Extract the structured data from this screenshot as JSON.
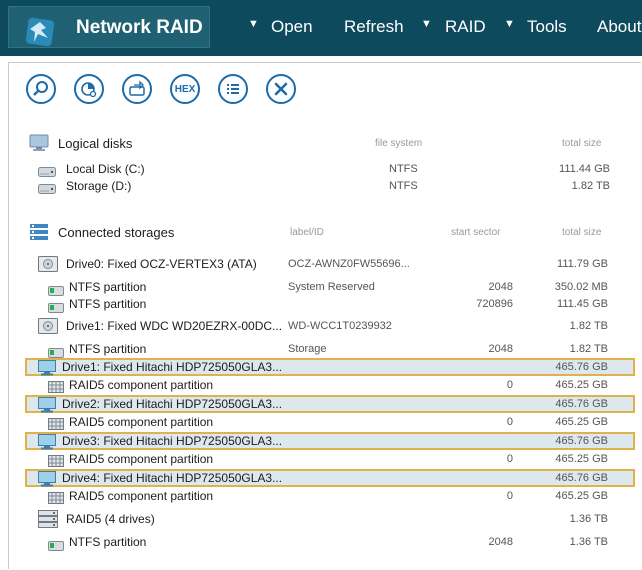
{
  "app": {
    "title": "Network RAID",
    "menu": [
      "Open",
      "Refresh",
      "RAID",
      "Tools",
      "About"
    ],
    "arrow": "▼"
  },
  "toolbar": {
    "hex_label": "HEX"
  },
  "logical": {
    "title": "Logical disks",
    "col_fs": "file system",
    "col_size": "total size",
    "rows": [
      {
        "name": "Local Disk (C:)",
        "fs": "NTFS",
        "size": "111.44 GB"
      },
      {
        "name": "Storage (D:)",
        "fs": "NTFS",
        "size": "1.82 TB"
      }
    ]
  },
  "storages": {
    "title": "Connected storages",
    "col_label": "label/ID",
    "col_start": "start sector",
    "col_size": "total size",
    "rows": [
      {
        "name": "Drive0: Fixed OCZ-VERTEX3 (ATA)",
        "label": "OCZ-AWNZ0FW55696...",
        "start": "",
        "size": "111.79 GB"
      },
      {
        "name": "NTFS partition",
        "label": "System Reserved",
        "start": "2048",
        "size": "350.02 MB"
      },
      {
        "name": "NTFS partition",
        "label": "",
        "start": "720896",
        "size": "111.45 GB"
      },
      {
        "name": "Drive1: Fixed WDC WD20EZRX-00DC...",
        "label": "WD-WCC1T0239932",
        "start": "",
        "size": "1.82 TB"
      },
      {
        "name": "NTFS partition",
        "label": "Storage",
        "start": "2048",
        "size": "1.82 TB"
      },
      {
        "name": "Drive1: Fixed Hitachi HDP725050GLA3...",
        "label": "",
        "start": "",
        "size": "465.76 GB"
      },
      {
        "name": "RAID5 component partition",
        "label": "",
        "start": "0",
        "size": "465.25 GB"
      },
      {
        "name": "Drive2: Fixed Hitachi HDP725050GLA3...",
        "label": "",
        "start": "",
        "size": "465.76 GB"
      },
      {
        "name": "RAID5 component partition",
        "label": "",
        "start": "0",
        "size": "465.25 GB"
      },
      {
        "name": "Drive3: Fixed Hitachi HDP725050GLA3...",
        "label": "",
        "start": "",
        "size": "465.76 GB"
      },
      {
        "name": "RAID5 component partition",
        "label": "",
        "start": "0",
        "size": "465.25 GB"
      },
      {
        "name": "Drive4: Fixed Hitachi HDP725050GLA3...",
        "label": "",
        "start": "",
        "size": "465.76 GB"
      },
      {
        "name": "RAID5 component partition",
        "label": "",
        "start": "0",
        "size": "465.25 GB"
      },
      {
        "name": "RAID5 (4 drives)",
        "label": "",
        "start": "",
        "size": "1.36 TB"
      },
      {
        "name": "NTFS partition",
        "label": "",
        "start": "2048",
        "size": "1.36 TB"
      }
    ]
  },
  "colors": {
    "header_bg": "#0e4a5e",
    "accent": "#1d6aa8",
    "highlight_border": "#e0b24a",
    "highlight_bg": "#dde7ee"
  }
}
